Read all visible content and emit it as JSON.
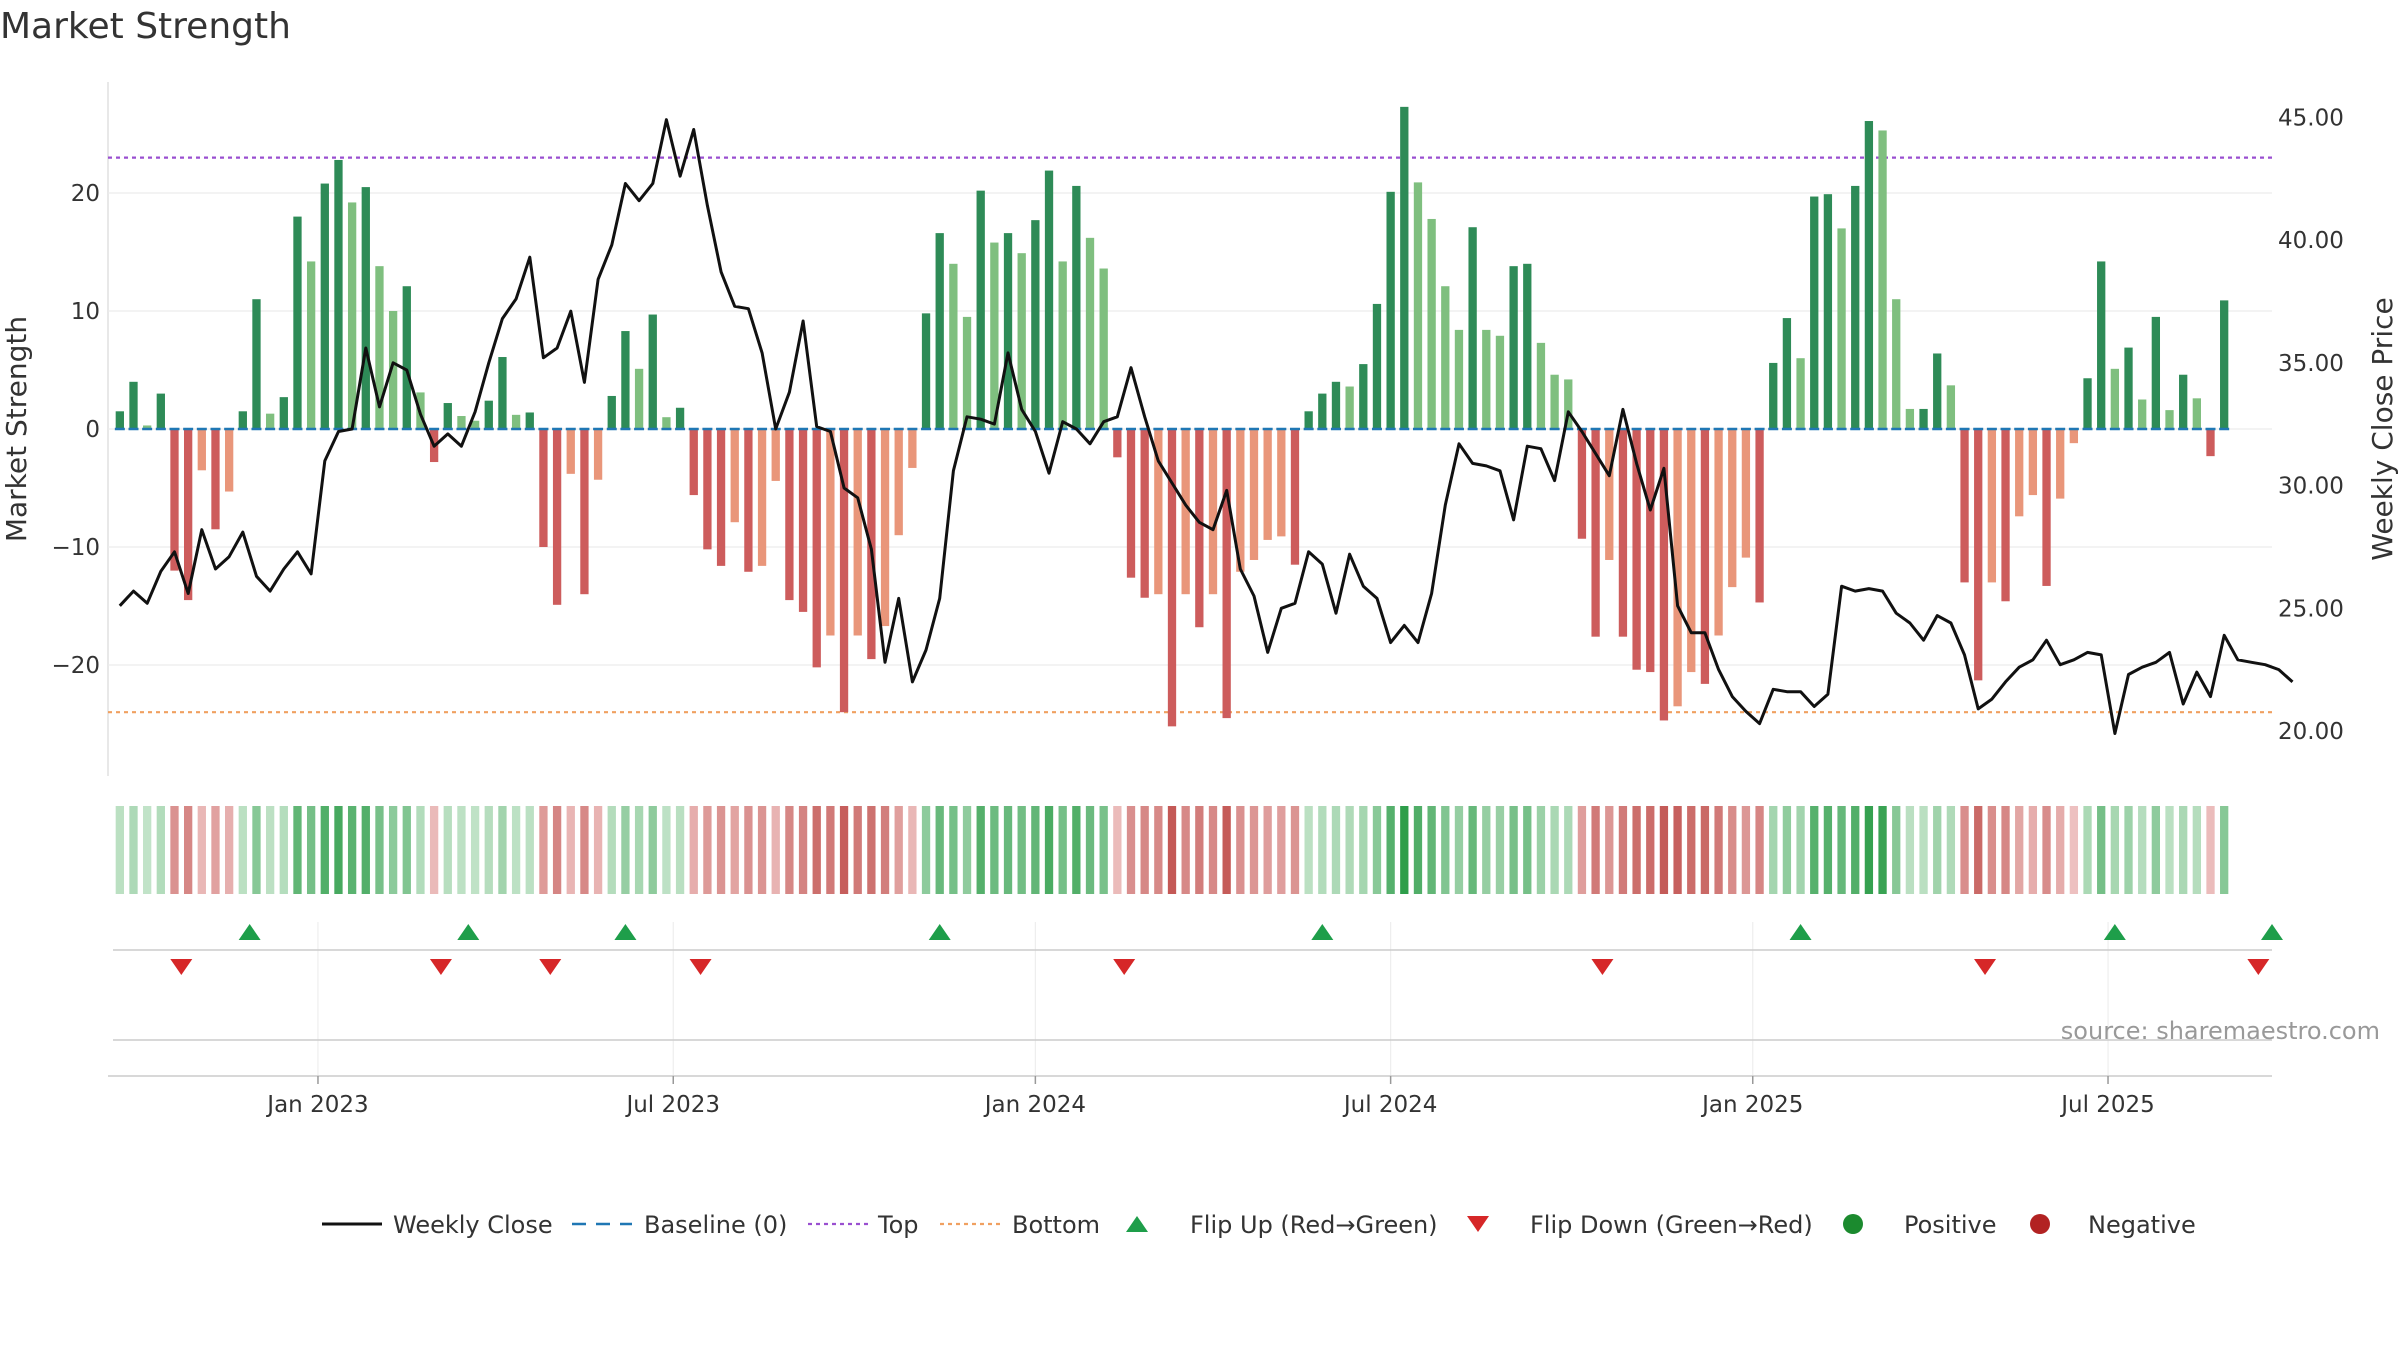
{
  "chart_data": {
    "type": "bar",
    "title": "Market Strength",
    "ylabel": "Market Strength",
    "y2label": "Weekly Close Price",
    "ylim": [
      -29,
      30
    ],
    "y2lim": [
      18.6,
      46.7
    ],
    "yticks": [
      -20,
      -10,
      0,
      10,
      20
    ],
    "ytick_labels": [
      "−20",
      "−10",
      "0",
      "10",
      "20"
    ],
    "y2ticks": [
      20,
      25,
      30,
      35,
      40,
      45
    ],
    "y2tick_labels": [
      "20.00",
      "25.00",
      "30.00",
      "35.00",
      "40.00",
      "45.00"
    ],
    "xticks": [
      {
        "week": 14.5,
        "label": "Jan 2023"
      },
      {
        "week": 40.5,
        "label": "Jul 2023"
      },
      {
        "week": 67,
        "label": "Jan 2024"
      },
      {
        "week": 93,
        "label": "Jul 2024"
      },
      {
        "week": 119.5,
        "label": "Jan 2025"
      },
      {
        "week": 145.5,
        "label": "Jul 2025"
      }
    ],
    "num_weeks": 158,
    "top_line": 23,
    "bottom_line": -24,
    "series": [
      {
        "name": "Market Strength",
        "values": [
          1.5,
          4,
          0.3,
          3,
          -12,
          -14.5,
          -3.5,
          -8.5,
          -5.3,
          1.5,
          11,
          1.3,
          2.7,
          18,
          14.2,
          20.8,
          22.8,
          19.2,
          20.5,
          13.8,
          10,
          12.1,
          3.1,
          -2.8,
          2.2,
          1.1,
          0.7,
          2.4,
          6.1,
          1.2,
          1.4,
          -10,
          -14.9,
          -3.8,
          -14,
          -4.3,
          2.8,
          8.3,
          5.1,
          9.7,
          1,
          1.8,
          -5.6,
          -10.2,
          -11.6,
          -7.9,
          -12.1,
          -11.6,
          -4.4,
          -14.5,
          -15.5,
          -20.2,
          -17.5,
          -24,
          -17.5,
          -19.5,
          -16.7,
          -9,
          -3.3,
          9.8,
          16.6,
          14,
          9.5,
          20.2,
          15.8,
          16.6,
          14.9,
          17.7,
          21.9,
          14.2,
          20.6,
          16.2,
          13.6,
          -2.4,
          -12.6,
          -14.3,
          -14,
          -25.2,
          -14,
          -16.8,
          -14,
          -24.5,
          -12.1,
          -11.1,
          -9.4,
          -9.1,
          -11.5,
          1.5,
          3,
          4,
          3.6,
          5.5,
          10.6,
          20.1,
          27.3,
          20.9,
          17.8,
          12.1,
          8.4,
          17.1,
          8.4,
          7.9,
          13.8,
          14,
          7.3,
          4.6,
          4.2,
          -9.3,
          -17.6,
          -11.1,
          -17.6,
          -20.4,
          -20.6,
          -24.7,
          -23.5,
          -20.6,
          -21.6,
          -17.5,
          -13.4,
          -10.9,
          -14.7,
          5.6,
          9.4,
          6,
          19.7,
          19.9,
          17,
          20.6,
          26.1,
          25.3,
          11,
          1.7,
          1.7,
          6.4,
          3.7,
          -13,
          -21.3,
          -13,
          -14.6,
          -7.4,
          -5.6,
          -13.3,
          -5.9,
          -1.2,
          4.3,
          14.2,
          5.1,
          6.9,
          2.5,
          9.5,
          1.6,
          4.6,
          2.6,
          -2.3,
          10.9
        ]
      },
      {
        "name": "Weekly Close",
        "values": [
          25.1,
          25.7,
          25.2,
          26.5,
          27.3,
          25.6,
          28.2,
          26.6,
          27.1,
          28.1,
          26.3,
          25.7,
          26.6,
          27.3,
          26.4,
          31,
          32.2,
          32.3,
          35.6,
          33.2,
          35,
          34.7,
          32.9,
          31.6,
          32.1,
          31.6,
          33,
          35,
          36.8,
          37.6,
          39.3,
          35.2,
          35.6,
          37.1,
          34.2,
          38.4,
          39.8,
          42.3,
          41.6,
          42.3,
          44.9,
          42.6,
          44.5,
          41.4,
          38.7,
          37.3,
          37.2,
          35.4,
          32.3,
          33.8,
          36.7,
          32.4,
          32.2,
          29.9,
          29.5,
          27.4,
          22.8,
          25.4,
          22,
          23.3,
          25.4,
          30.6,
          32.8,
          32.7,
          32.5,
          35.4,
          33.1,
          32.2,
          30.5,
          32.6,
          32.3,
          31.7,
          32.6,
          32.8,
          34.8,
          32.8,
          31,
          30.1,
          29.2,
          28.5,
          28.2,
          29.8,
          26.6,
          25.5,
          23.2,
          25,
          25.2,
          27.3,
          26.8,
          24.8,
          27.2,
          25.9,
          25.4,
          23.6,
          24.3,
          23.6,
          25.6,
          29.2,
          31.7,
          30.9,
          30.8,
          30.6,
          28.6,
          31.6,
          31.5,
          30.2,
          33,
          32.2,
          31.3,
          30.4,
          33.1,
          30.9,
          29,
          30.7,
          25.1,
          24,
          24,
          22.5,
          21.4,
          20.8,
          20.3,
          21.7,
          21.6,
          21.6,
          21,
          21.5,
          25.9,
          25.7,
          25.8,
          25.7,
          24.8,
          24.4,
          23.7,
          24.7,
          24.4,
          23.1,
          20.9,
          21.3,
          22,
          22.6,
          22.9,
          23.7,
          22.7,
          22.9,
          23.2,
          23.1,
          19.9,
          22.3,
          22.6,
          22.8,
          23.2,
          21.1,
          22.4,
          21.4,
          23.9,
          22.9,
          22.8,
          22.7,
          22.5,
          22
        ]
      }
    ],
    "flip_up_weeks": [
      9.5,
      25.5,
      37,
      60,
      88,
      123,
      146,
      157.5
    ],
    "flip_down_weeks": [
      4.5,
      23.5,
      31.5,
      42.5,
      73.5,
      108.5,
      136.5,
      156.5
    ],
    "source": "source: sharemaestro.com",
    "legend": [
      {
        "label": "Weekly Close",
        "kind": "line"
      },
      {
        "label": "Baseline (0)",
        "kind": "dash"
      },
      {
        "label": "Top",
        "kind": "dot-purple"
      },
      {
        "label": "Bottom",
        "kind": "dot-orange"
      },
      {
        "label": "Flip Up (Red→Green)",
        "kind": "tri-up"
      },
      {
        "label": "Flip Down (Green→Red)",
        "kind": "tri-down"
      },
      {
        "label": "Positive",
        "kind": "circle-green"
      },
      {
        "label": "Negative",
        "kind": "circle-red"
      }
    ]
  },
  "colors": {
    "positive_strong": "#2e8b57",
    "positive_weak": "#7fbf7f",
    "negative_strong": "#cd5c5c",
    "negative_weak": "#e9967a",
    "top": "#9a4fd0",
    "bottom": "#f0a060",
    "baseline": "#1f77b4",
    "flip_up": "#1e9e4a",
    "flip_down": "#d62728",
    "positive_marker": "#1b8a2e",
    "negative_marker": "#b22222",
    "line": "#111111"
  }
}
